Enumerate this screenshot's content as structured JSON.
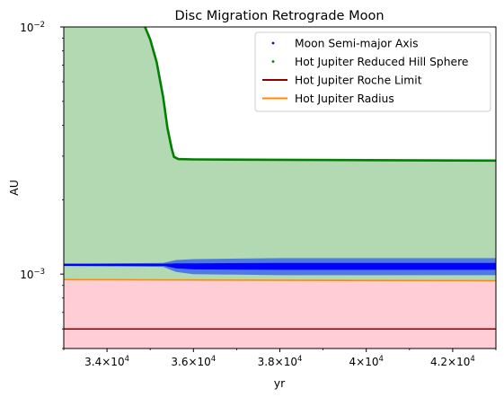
{
  "chart_data": {
    "type": "line",
    "title": "Disc Migration Retrograde Moon",
    "xlabel": "yr",
    "ylabel": "AU",
    "y_scale": "log",
    "xlim": [
      33000,
      43000
    ],
    "ylim": [
      0.0005,
      0.01
    ],
    "x_ticks": [
      {
        "value": 34000,
        "base": "3.4",
        "exp": "4"
      },
      {
        "value": 36000,
        "base": "3.6",
        "exp": "4"
      },
      {
        "value": 38000,
        "base": "3.8",
        "exp": "4"
      },
      {
        "value": 40000,
        "base": "4",
        "exp": "4"
      },
      {
        "value": 42000,
        "base": "4.2",
        "exp": "4"
      }
    ],
    "y_ticks": [
      {
        "value": 0.01,
        "exp": "−2"
      },
      {
        "value": 0.001,
        "exp": "−3"
      }
    ],
    "tick_base": "10",
    "times_sign": "×",
    "legend_position": "upper right",
    "series": [
      {
        "name": "Moon Semi-major Axis",
        "style": "scatter",
        "color": "#0000ff",
        "points": [
          [
            33000,
            0.00109
          ],
          [
            34000,
            0.00109
          ],
          [
            35000,
            0.00109
          ],
          [
            35500,
            0.00109
          ],
          [
            36000,
            0.00108
          ],
          [
            38000,
            0.00108
          ],
          [
            40000,
            0.00108
          ],
          [
            42000,
            0.00108
          ],
          [
            43000,
            0.00108
          ]
        ],
        "scatter_band": [
          [
            33000,
            0.00108,
            0.0011
          ],
          [
            35300,
            0.00107,
            0.00111
          ],
          [
            35600,
            0.00102,
            0.00114
          ],
          [
            36000,
            0.001,
            0.00115
          ],
          [
            38000,
            0.00099,
            0.00116
          ],
          [
            40000,
            0.00099,
            0.00116
          ],
          [
            42000,
            0.00099,
            0.00116
          ],
          [
            43000,
            0.00099,
            0.00116
          ]
        ]
      },
      {
        "name": "Hot Jupiter Reduced Hill Sphere",
        "style": "scatter",
        "color": "#008000",
        "fill_color": "#b3d9b3",
        "points": [
          [
            34880,
            0.01
          ],
          [
            35000,
            0.0089
          ],
          [
            35150,
            0.0072
          ],
          [
            35300,
            0.0052
          ],
          [
            35400,
            0.0039
          ],
          [
            35500,
            0.0032
          ],
          [
            35550,
            0.00298
          ],
          [
            35650,
            0.00292
          ],
          [
            36000,
            0.00291
          ],
          [
            38000,
            0.0029
          ],
          [
            40000,
            0.00289
          ],
          [
            43000,
            0.00288
          ]
        ]
      },
      {
        "name": "Hot Jupiter Roche Limit",
        "style": "line",
        "color": "#8b0000",
        "points": [
          [
            33000,
            0.0006
          ],
          [
            43000,
            0.0006
          ]
        ]
      },
      {
        "name": "Hot Jupiter Radius",
        "style": "line",
        "color": "#ff8c00",
        "fill_color": "#ffcdd6",
        "points": [
          [
            33000,
            0.00095
          ],
          [
            43000,
            0.00094
          ]
        ]
      }
    ]
  }
}
